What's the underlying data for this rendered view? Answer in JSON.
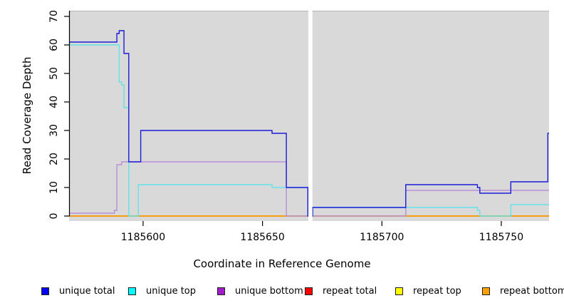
{
  "figure": {
    "x_title": "Coordinate in Reference Genome",
    "y_title": "Read Coverage Depth"
  },
  "chart_data": {
    "type": "line",
    "subtype": "step-coverage",
    "title": "",
    "xlabel": "Coordinate in Reference Genome",
    "ylabel": "Read Coverage Depth",
    "xlim": [
      1185569,
      1185770
    ],
    "ylim": [
      0,
      70
    ],
    "x_ticks": [
      1185600,
      1185650,
      1185700,
      1185750
    ],
    "y_ticks": [
      0,
      10,
      20,
      30,
      40,
      50,
      60,
      70
    ],
    "grid": false,
    "panel_color": "#d9d9d9",
    "panel_top_edge_color": "#b5b5b5",
    "gap_region": {
      "start": 1185669.2,
      "end": 1185670.9,
      "color": "#ffffff"
    },
    "legend_position": "bottom",
    "series": [
      {
        "name": "repeat_total",
        "label": "repeat total",
        "line_color": "#dd0000",
        "legend_color": "#ff0000",
        "steps": [
          [
            1185569,
            0
          ]
        ]
      },
      {
        "name": "repeat_top",
        "label": "repeat top",
        "line_color": "#eded00",
        "legend_color": "#ffff00",
        "steps": [
          [
            1185569,
            0
          ]
        ]
      },
      {
        "name": "repeat_bottom",
        "label": "repeat bottom",
        "line_color": "#ff9803",
        "legend_color": "#ffa000",
        "steps": [
          [
            1185569,
            0
          ]
        ]
      },
      {
        "name": "unique_bottom",
        "label": "unique bottom",
        "line_color": "#b78fd8",
        "legend_color": "#a21ccc",
        "steps": [
          [
            1185569,
            1
          ],
          [
            1185588,
            2
          ],
          [
            1185589,
            18
          ],
          [
            1185591,
            19
          ],
          [
            1185660,
            0
          ],
          [
            1185710,
            9
          ]
        ]
      },
      {
        "name": "unique_top",
        "label": "unique top",
        "line_color": "#63e2e8",
        "legend_color": "#00ffff",
        "steps": [
          [
            1185569,
            60
          ],
          [
            1185590,
            47
          ],
          [
            1185591,
            46
          ],
          [
            1185592,
            38
          ],
          [
            1185594,
            0
          ],
          [
            1185598,
            11
          ],
          [
            1185654,
            10
          ],
          [
            1185669,
            0
          ],
          [
            1185671,
            3
          ],
          [
            1185740,
            2
          ],
          [
            1185741,
            0
          ],
          [
            1185754,
            4
          ]
        ]
      },
      {
        "name": "unique_total",
        "label": "unique total",
        "line_color": "#1c1cd8",
        "legend_color": "#0000ee",
        "steps": [
          [
            1185569,
            61
          ],
          [
            1185589,
            64
          ],
          [
            1185590,
            65
          ],
          [
            1185592,
            57
          ],
          [
            1185594,
            19
          ],
          [
            1185599,
            30
          ],
          [
            1185654,
            29
          ],
          [
            1185660,
            10
          ],
          [
            1185669,
            0
          ],
          [
            1185671,
            3
          ],
          [
            1185710,
            11
          ],
          [
            1185740,
            10
          ],
          [
            1185741,
            8
          ],
          [
            1185754,
            12
          ],
          [
            1185769.5,
            29
          ]
        ]
      }
    ],
    "legend_order": [
      "unique_total",
      "unique_top",
      "unique_bottom",
      "repeat_total",
      "repeat_top",
      "repeat_bottom"
    ]
  }
}
